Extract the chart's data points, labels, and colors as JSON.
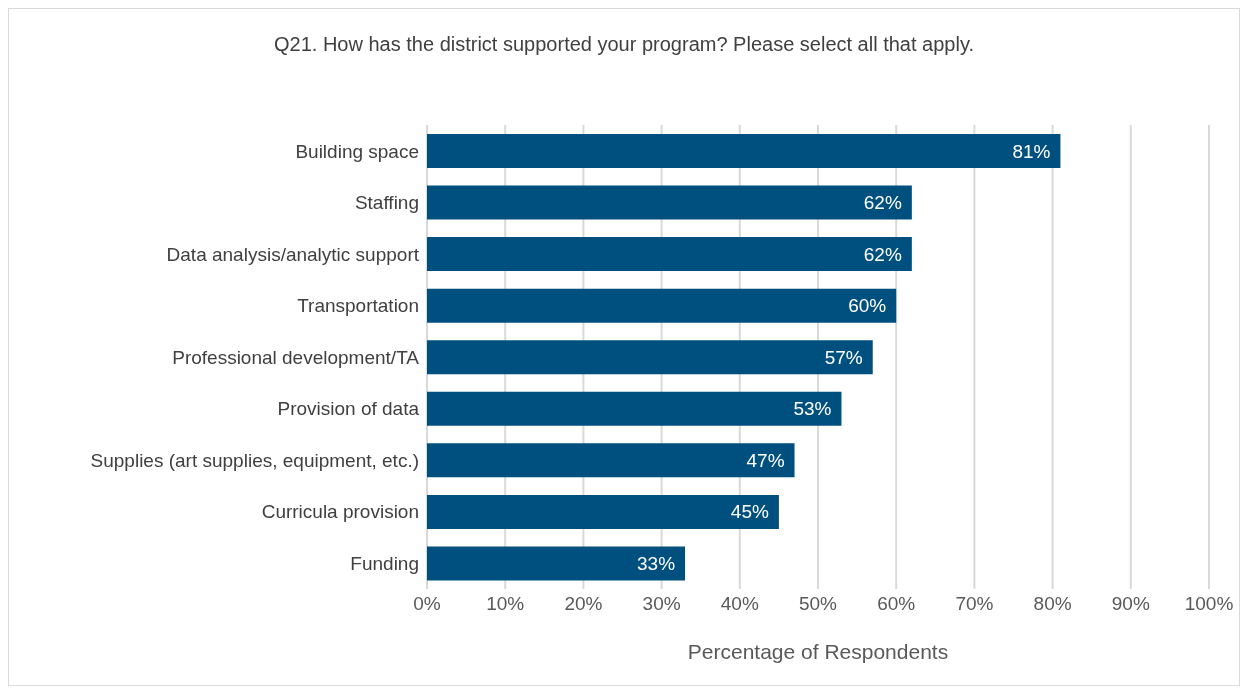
{
  "chart_data": {
    "type": "bar",
    "orientation": "horizontal",
    "title": "Q21. How has the district supported your program? Please select all that apply.",
    "xlabel": "Percentage of Respondents",
    "categories": [
      "Building space",
      "Staffing",
      "Data analysis/analytic support",
      "Transportation",
      "Professional development/TA",
      "Provision of data",
      "Supplies (art supplies, equipment, etc.)",
      "Curricula provision",
      "Funding"
    ],
    "values": [
      81,
      62,
      62,
      60,
      57,
      53,
      47,
      45,
      33
    ],
    "value_labels": [
      "81%",
      "62%",
      "62%",
      "60%",
      "57%",
      "53%",
      "47%",
      "45%",
      "33%"
    ],
    "color": "#00507f",
    "xlim": [
      0,
      100
    ],
    "xticks": [
      {
        "value": 0,
        "label": "0%"
      },
      {
        "value": 10,
        "label": "10%"
      },
      {
        "value": 20,
        "label": "20%"
      },
      {
        "value": 30,
        "label": "30%"
      },
      {
        "value": 40,
        "label": "40%"
      },
      {
        "value": 50,
        "label": "50%"
      },
      {
        "value": 60,
        "label": "60%"
      },
      {
        "value": 70,
        "label": "70%"
      },
      {
        "value": 80,
        "label": "80%"
      },
      {
        "value": 90,
        "label": "90%"
      },
      {
        "value": 100,
        "label": "100%"
      }
    ],
    "grid": "x",
    "legend": false
  }
}
